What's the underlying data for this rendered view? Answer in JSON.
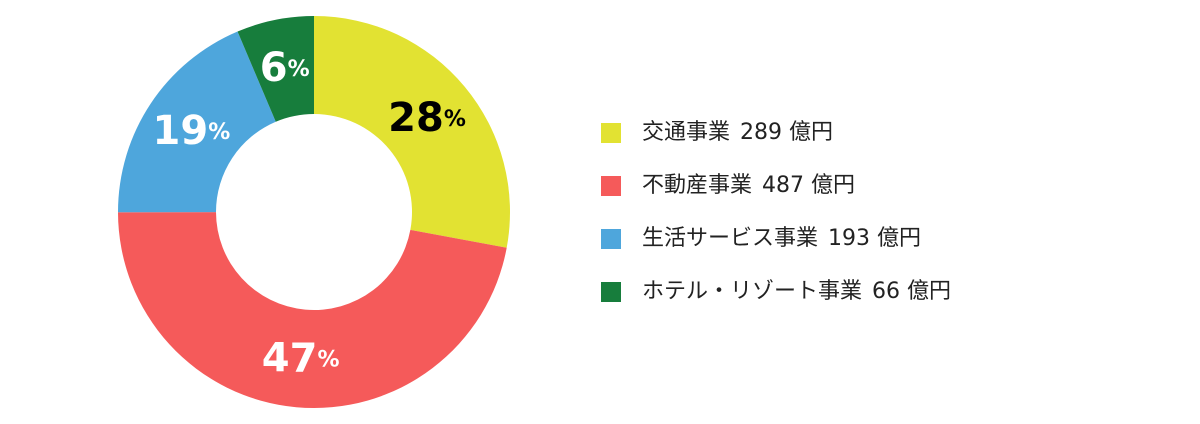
{
  "chart_data": {
    "type": "pie",
    "donut": true,
    "categories": [
      "交通事業",
      "不動産事業",
      "生活サービス事業",
      "ホテル・リゾート事業"
    ],
    "values": [
      289,
      487,
      193,
      66
    ],
    "unit": "億円",
    "percentages": [
      28,
      47,
      19,
      6
    ],
    "percent_sign": "%",
    "colors": [
      "#e2e232",
      "#f55a5a",
      "#4ea6dc",
      "#177d3c"
    ],
    "label_colors": [
      "#000000",
      "#ffffff",
      "#ffffff",
      "#ffffff"
    ]
  }
}
